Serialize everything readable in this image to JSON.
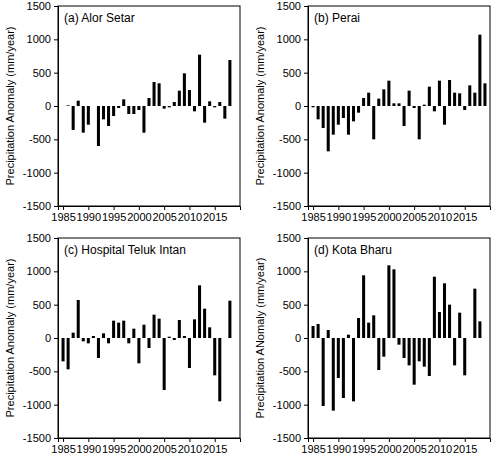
{
  "chart_data": [
    {
      "type": "bar",
      "title": "(a) Alor Setar",
      "y_label": "Precipitation Anomaly (mm/year)",
      "color": "#000000",
      "x": [
        1985,
        1986,
        1987,
        1988,
        1989,
        1990,
        1991,
        1992,
        1993,
        1994,
        1995,
        1996,
        1997,
        1998,
        1999,
        2000,
        2001,
        2002,
        2003,
        2004,
        2005,
        2006,
        2007,
        2008,
        2009,
        2010,
        2011,
        2012,
        2013,
        2014,
        2015,
        2016,
        2017,
        2018
      ],
      "values": [
        0,
        10,
        -360,
        80,
        -400,
        -280,
        0,
        -600,
        -200,
        -300,
        -150,
        -30,
        100,
        -120,
        -120,
        -60,
        -400,
        120,
        360,
        340,
        -40,
        -20,
        60,
        230,
        490,
        240,
        -80,
        770,
        -250,
        70,
        -20,
        60,
        -190,
        690
      ],
      "xlim": [
        1984,
        2020
      ],
      "xticks": [
        1985,
        1990,
        1995,
        2000,
        2005,
        2010,
        2015
      ],
      "ylim": [
        -1500,
        1500
      ],
      "yticks": [
        -1500,
        -1000,
        -500,
        0,
        500,
        1000,
        1500
      ]
    },
    {
      "type": "bar",
      "title": "(b) Perai",
      "y_label": "Precipitation Anomaly (mm/year)",
      "color": "#000000",
      "x": [
        1985,
        1986,
        1987,
        1988,
        1989,
        1990,
        1991,
        1992,
        1993,
        1994,
        1995,
        1996,
        1997,
        1998,
        1999,
        2000,
        2001,
        2002,
        2003,
        2004,
        2005,
        2006,
        2007,
        2008,
        2009,
        2010,
        2011,
        2012,
        2013,
        2014,
        2015,
        2016,
        2017,
        2018,
        2019
      ],
      "values": [
        -20,
        -200,
        -330,
        -680,
        -430,
        -280,
        -180,
        -430,
        -230,
        -100,
        120,
        200,
        -500,
        110,
        250,
        380,
        40,
        40,
        -300,
        230,
        -30,
        -500,
        20,
        290,
        -80,
        380,
        -280,
        390,
        200,
        190,
        -60,
        310,
        200,
        1070,
        340
      ],
      "xlim": [
        1984,
        2020
      ],
      "xticks": [
        1985,
        1990,
        1995,
        2000,
        2005,
        2010,
        2015
      ],
      "ylim": [
        -1500,
        1500
      ],
      "yticks": [
        -1500,
        -1000,
        -500,
        0,
        500,
        1000,
        1500
      ]
    },
    {
      "type": "bar",
      "title": "(c) Hospital Teluk Intan",
      "y_label": "Precipitation Anomaly (mm/year)",
      "color": "#000000",
      "x": [
        1985,
        1986,
        1987,
        1988,
        1989,
        1990,
        1991,
        1992,
        1993,
        1994,
        1995,
        1996,
        1997,
        1998,
        1999,
        2000,
        2001,
        2002,
        2003,
        2004,
        2005,
        2006,
        2007,
        2008,
        2009,
        2010,
        2011,
        2012,
        2013,
        2014,
        2015,
        2016,
        2017,
        2018
      ],
      "values": [
        -350,
        -470,
        80,
        570,
        -50,
        -80,
        30,
        -300,
        70,
        -80,
        260,
        230,
        260,
        -80,
        140,
        -380,
        200,
        -150,
        350,
        290,
        -780,
        20,
        -30,
        270,
        30,
        -450,
        280,
        790,
        440,
        160,
        -560,
        -950,
        0,
        560
      ],
      "xlim": [
        1984,
        2020
      ],
      "xticks": [
        1985,
        1990,
        1995,
        2000,
        2005,
        2010,
        2015
      ],
      "ylim": [
        -1500,
        1500
      ],
      "yticks": [
        -1500,
        -1000,
        -500,
        0,
        500,
        1000,
        1500
      ]
    },
    {
      "type": "bar",
      "title": "(d) Kota Bharu",
      "y_label": "Precipitation ANomaly (mm/year)",
      "color": "#000000",
      "x": [
        1985,
        1986,
        1987,
        1988,
        1989,
        1990,
        1991,
        1992,
        1993,
        1994,
        1995,
        1996,
        1997,
        1998,
        1999,
        2000,
        2001,
        2002,
        2003,
        2004,
        2005,
        2006,
        2007,
        2008,
        2009,
        2010,
        2011,
        2012,
        2013,
        2014,
        2015,
        2016,
        2017,
        2018
      ],
      "values": [
        180,
        210,
        -1020,
        120,
        -1090,
        -600,
        -900,
        50,
        -950,
        300,
        940,
        230,
        340,
        -480,
        -280,
        1090,
        1030,
        -100,
        -300,
        -410,
        -700,
        -350,
        -430,
        -570,
        920,
        390,
        820,
        500,
        -410,
        380,
        -560,
        0,
        740,
        250
      ],
      "xlim": [
        1984,
        2020
      ],
      "xticks": [
        1985,
        1990,
        1995,
        2000,
        2005,
        2010,
        2015
      ],
      "ylim": [
        -1500,
        1500
      ],
      "yticks": [
        -1500,
        -1000,
        -500,
        0,
        500,
        1000,
        1500
      ]
    }
  ]
}
